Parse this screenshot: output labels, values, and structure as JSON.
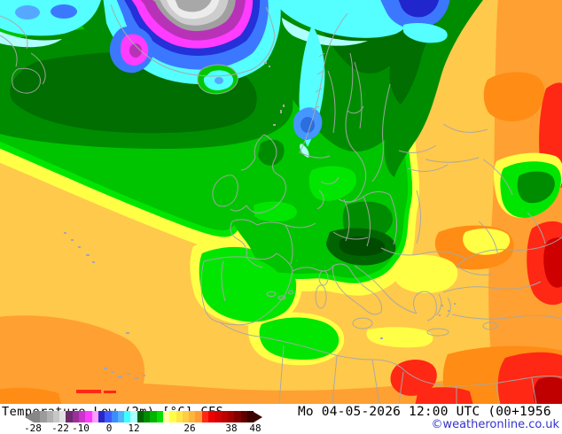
{
  "title": "Temperature Low (2m) [°C] CFS",
  "datetime": "Mo 04-05-2026 12:00 UTC (00+1956",
  "copyright": "©weatheronline.co.uk",
  "scale": {
    "labels": [
      "-28",
      "-22",
      "-10",
      "0",
      "12",
      "26",
      "38",
      "48"
    ],
    "label_centers": [
      9,
      40,
      63,
      95,
      123,
      186,
      233,
      260
    ],
    "segments": [
      "#878787",
      "#9b9b9b",
      "#b1b1b1",
      "#c7c7c7",
      "#e1e1e1",
      "#6e2b6e",
      "#9b309b",
      "#cd32cd",
      "#ff3aff",
      "#ff9eff",
      "#2828c8",
      "#3c5aff",
      "#3c8cff",
      "#50b4ff",
      "#3cffff",
      "#aaffff",
      "#006400",
      "#008c00",
      "#00b400",
      "#00e000",
      "#ffffa0",
      "#ffff46",
      "#ffe646",
      "#ffcd46",
      "#ffb43c",
      "#ff9b32",
      "#ff2814",
      "#ef0000",
      "#d60000",
      "#bd0000",
      "#a40000",
      "#820000",
      "#5f0000",
      "#3c0000"
    ],
    "arrow_left_color": "#878787",
    "arrow_right_color": "#3c0000"
  },
  "colors": {
    "text": "#000000",
    "copyright_link": "#3333cc",
    "border_lines": "#a8a8a8",
    "background": "#ffffff",
    "map_gold": "#ffc94b",
    "map_yellow": "#ffff46",
    "map_green": "#00c400",
    "map_dark_green": "#008c00",
    "map_orange": "#ffa032",
    "map_red": "#ff2814",
    "map_cyan": "#55ffff",
    "map_magenta": "#ff3cff"
  }
}
